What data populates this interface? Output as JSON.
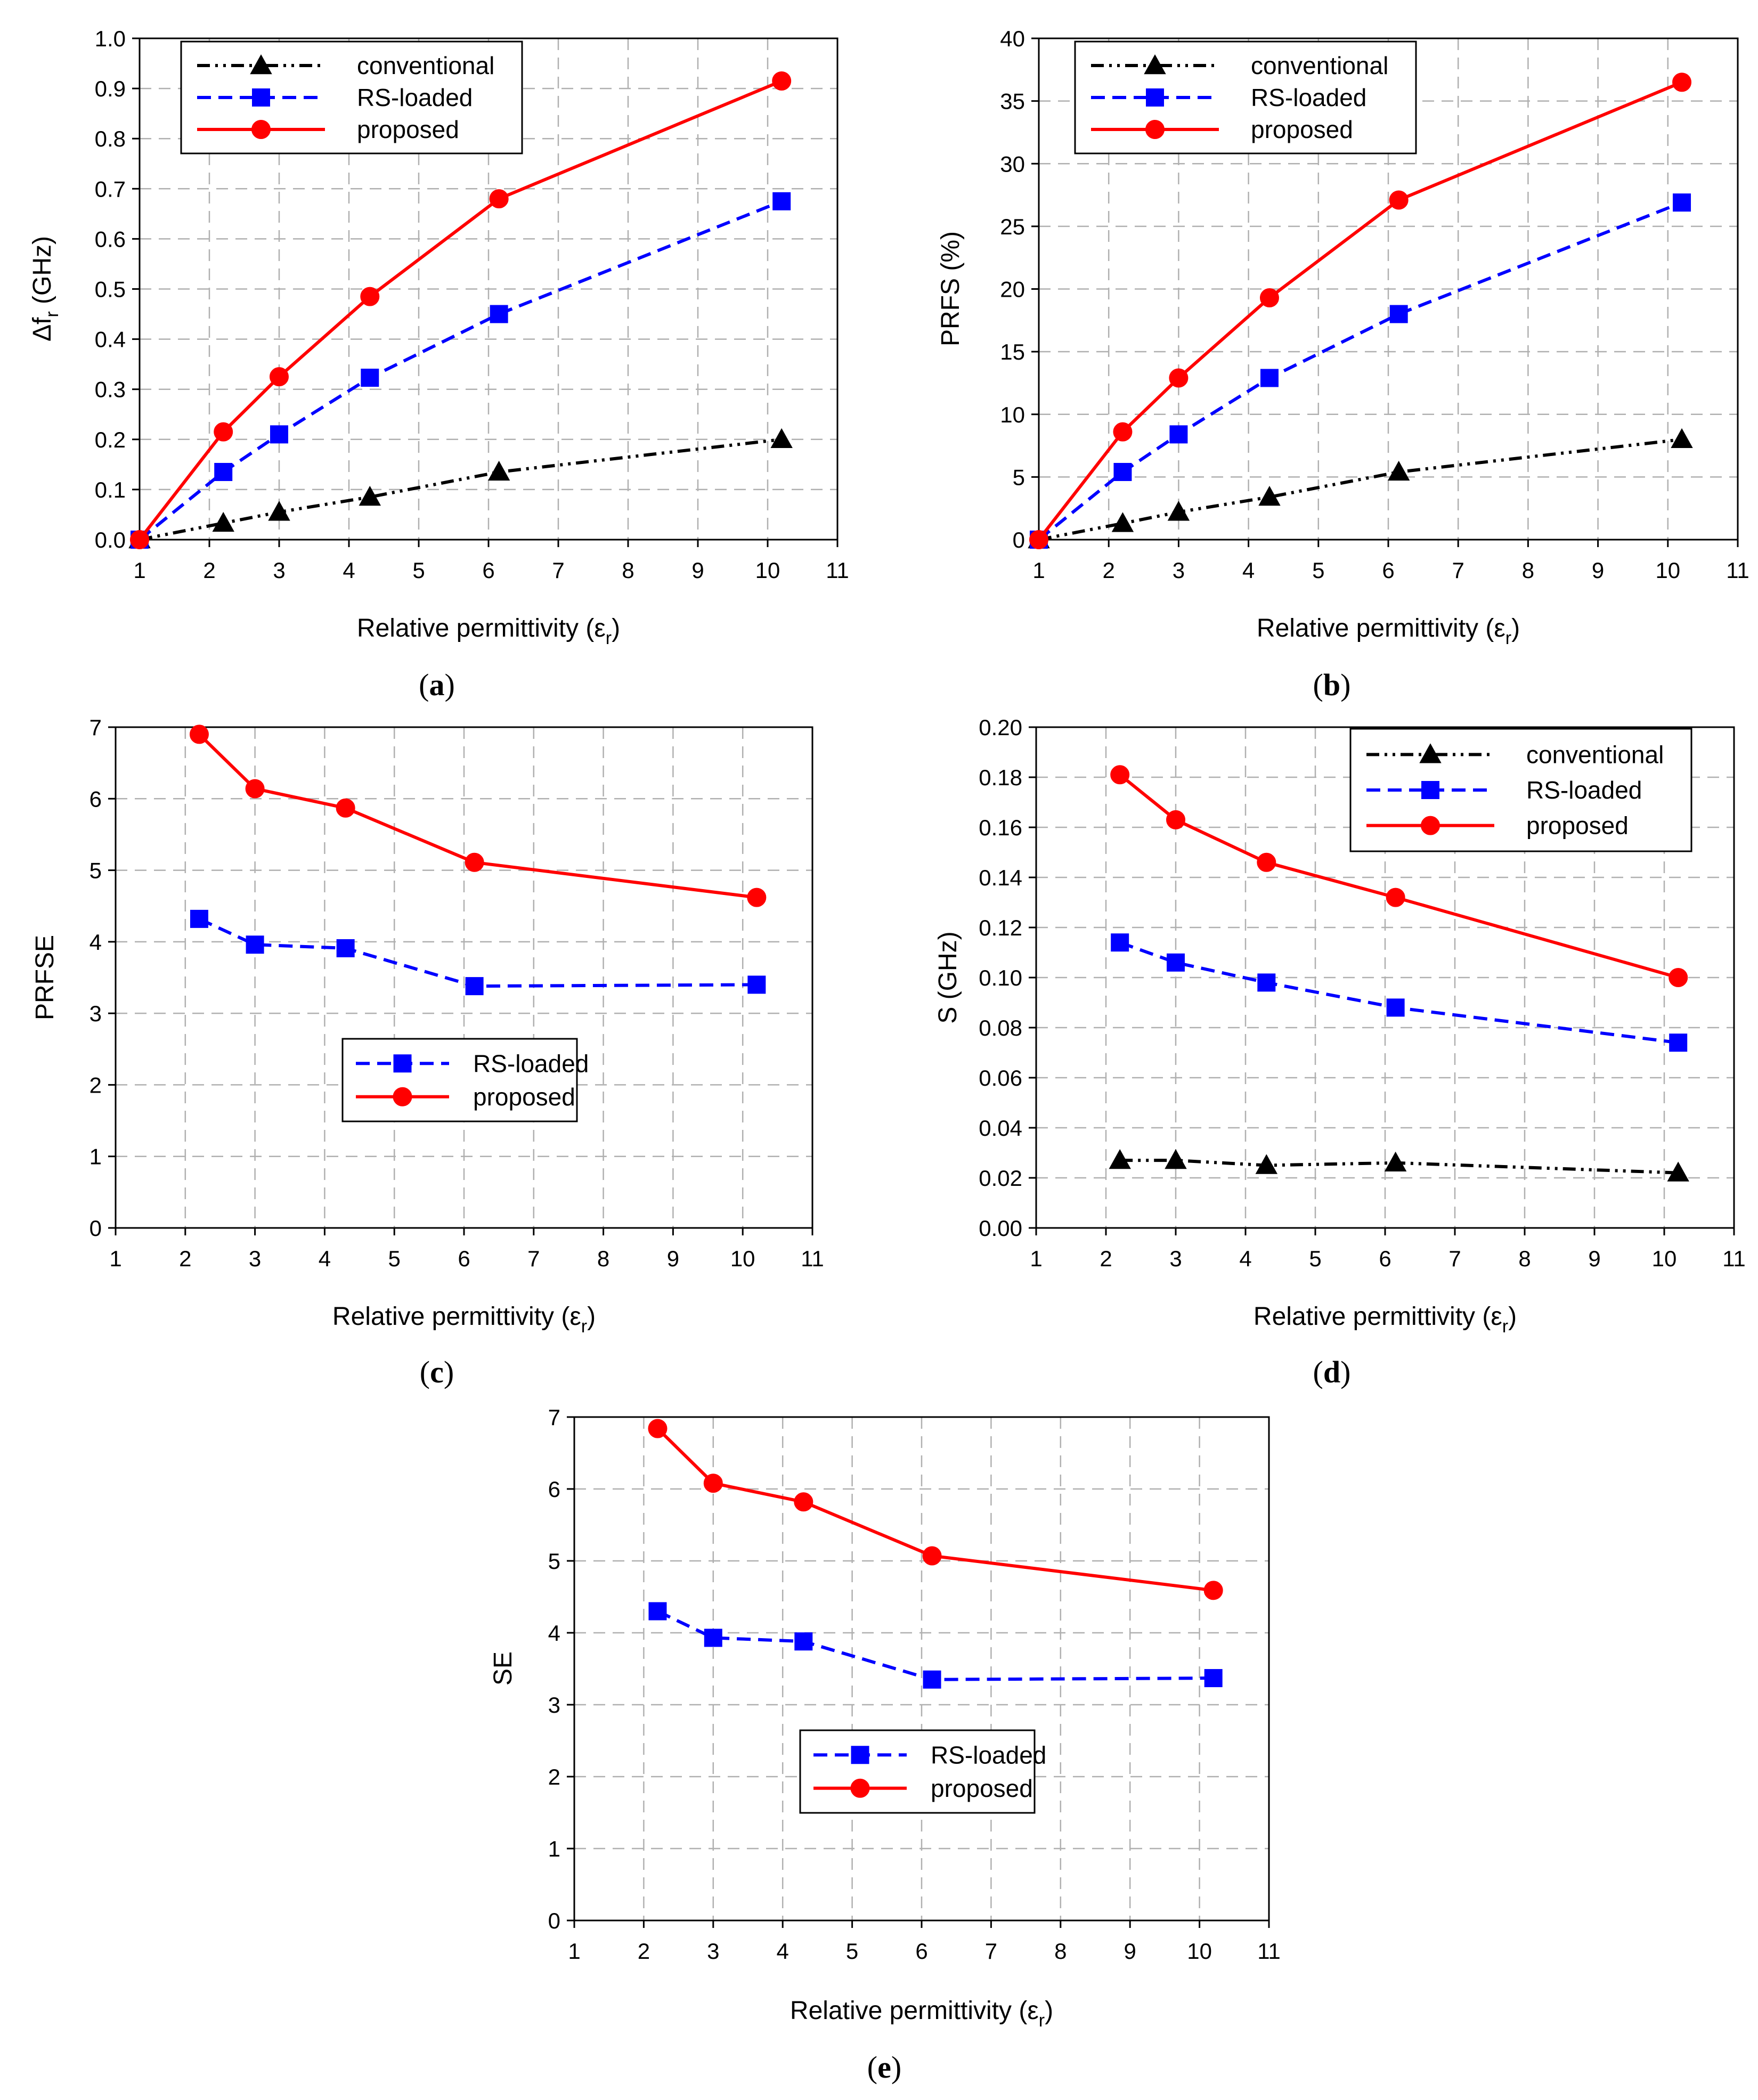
{
  "chart_data": [
    {
      "type": "line",
      "panel": "a",
      "caption": "a",
      "title": "",
      "xlabel": "Relative permittivity",
      "xlabel_symbol": "ε",
      "xlabel_sub": "r",
      "ylabel": "Δf",
      "ylabel_sub": "r",
      "ylabel_unit": "(GHz)",
      "xlim": [
        1,
        11
      ],
      "ylim": [
        0,
        1.0
      ],
      "xticks": [
        "1",
        "2",
        "3",
        "4",
        "5",
        "6",
        "7",
        "8",
        "9",
        "10",
        "11"
      ],
      "yticks": [
        "0.0",
        "0.1",
        "0.2",
        "0.3",
        "0.4",
        "0.5",
        "0.6",
        "0.7",
        "0.8",
        "0.9",
        "1.0"
      ],
      "grid": true,
      "legend_position": "top-left",
      "series": [
        {
          "name": "conventional",
          "color": "#000000",
          "dash": "dashdotdot",
          "marker": "triangle",
          "x": [
            1,
            2.2,
            3,
            4.3,
            6.15,
            10.2
          ],
          "values": [
            0,
            0.033,
            0.055,
            0.085,
            0.135,
            0.2
          ]
        },
        {
          "name": "RS-loaded",
          "color": "#0000ff",
          "dash": "dashed",
          "marker": "square",
          "x": [
            1,
            2.2,
            3,
            4.3,
            6.15,
            10.2
          ],
          "values": [
            0,
            0.135,
            0.21,
            0.323,
            0.45,
            0.675
          ]
        },
        {
          "name": "proposed",
          "color": "#ff0000",
          "dash": "solid",
          "marker": "circle",
          "x": [
            1,
            2.2,
            3,
            4.3,
            6.15,
            10.2
          ],
          "values": [
            0,
            0.215,
            0.325,
            0.485,
            0.68,
            0.915
          ]
        }
      ]
    },
    {
      "type": "line",
      "panel": "b",
      "caption": "b",
      "title": "",
      "xlabel": "Relative permittivity",
      "xlabel_symbol": "ε",
      "xlabel_sub": "r",
      "ylabel": "PRFS (%)",
      "xlim": [
        1,
        11
      ],
      "ylim": [
        0,
        40
      ],
      "xticks": [
        "1",
        "2",
        "3",
        "4",
        "5",
        "6",
        "7",
        "8",
        "9",
        "10",
        "11"
      ],
      "yticks": [
        "0",
        "5",
        "10",
        "15",
        "20",
        "25",
        "30",
        "35",
        "40"
      ],
      "grid": true,
      "legend_position": "top-left",
      "series": [
        {
          "name": "conventional",
          "color": "#000000",
          "dash": "dashdotdot",
          "marker": "triangle",
          "x": [
            1,
            2.2,
            3,
            4.3,
            6.15,
            10.2
          ],
          "values": [
            0,
            1.3,
            2.2,
            3.4,
            5.4,
            8.0
          ]
        },
        {
          "name": "RS-loaded",
          "color": "#0000ff",
          "dash": "dashed",
          "marker": "square",
          "x": [
            1,
            2.2,
            3,
            4.3,
            6.15,
            10.2
          ],
          "values": [
            0,
            5.4,
            8.4,
            12.9,
            18.0,
            26.9
          ]
        },
        {
          "name": "proposed",
          "color": "#ff0000",
          "dash": "solid",
          "marker": "circle",
          "x": [
            1,
            2.2,
            3,
            4.3,
            6.15,
            10.2
          ],
          "values": [
            0,
            8.6,
            12.9,
            19.3,
            27.1,
            36.5
          ]
        }
      ]
    },
    {
      "type": "line",
      "panel": "c",
      "caption": "c",
      "title": "",
      "xlabel": "Relative permittivity",
      "xlabel_symbol": "ε",
      "xlabel_sub": "r",
      "ylabel": "PRFSE",
      "xlim": [
        1,
        11
      ],
      "ylim": [
        0,
        7
      ],
      "xticks": [
        "1",
        "2",
        "3",
        "4",
        "5",
        "6",
        "7",
        "8",
        "9",
        "10",
        "11"
      ],
      "yticks": [
        "0",
        "1",
        "2",
        "3",
        "4",
        "5",
        "6",
        "7"
      ],
      "grid": true,
      "legend_position": "center",
      "series": [
        {
          "name": "RS-loaded",
          "color": "#0000ff",
          "dash": "dashed",
          "marker": "square",
          "x": [
            2.2,
            3,
            4.3,
            6.15,
            10.2
          ],
          "values": [
            4.32,
            3.96,
            3.91,
            3.38,
            3.4
          ]
        },
        {
          "name": "proposed",
          "color": "#ff0000",
          "dash": "solid",
          "marker": "circle",
          "x": [
            2.2,
            3,
            4.3,
            6.15,
            10.2
          ],
          "values": [
            6.9,
            6.14,
            5.87,
            5.11,
            4.62
          ]
        }
      ]
    },
    {
      "type": "line",
      "panel": "d",
      "caption": "d",
      "title": "",
      "xlabel": "Relative permittivity",
      "xlabel_symbol": "ε",
      "xlabel_sub": "r",
      "ylabel": "S (GHz)",
      "xlim": [
        1,
        11
      ],
      "ylim": [
        0,
        0.2
      ],
      "xticks": [
        "1",
        "2",
        "3",
        "4",
        "5",
        "6",
        "7",
        "8",
        "9",
        "10",
        "11"
      ],
      "yticks": [
        "0.00",
        "0.02",
        "0.04",
        "0.06",
        "0.08",
        "0.10",
        "0.12",
        "0.14",
        "0.16",
        "0.18",
        "0.20"
      ],
      "grid": true,
      "legend_position": "top-right",
      "series": [
        {
          "name": "conventional",
          "color": "#000000",
          "dash": "dashdotdot",
          "marker": "triangle",
          "x": [
            2.2,
            3,
            4.3,
            6.15,
            10.2
          ],
          "values": [
            0.027,
            0.027,
            0.025,
            0.026,
            0.022
          ]
        },
        {
          "name": "RS-loaded",
          "color": "#0000ff",
          "dash": "dashed",
          "marker": "square",
          "x": [
            2.2,
            3,
            4.3,
            6.15,
            10.2
          ],
          "values": [
            0.114,
            0.106,
            0.098,
            0.088,
            0.074
          ]
        },
        {
          "name": "proposed",
          "color": "#ff0000",
          "dash": "solid",
          "marker": "circle",
          "x": [
            2.2,
            3,
            4.3,
            6.15,
            10.2
          ],
          "values": [
            0.181,
            0.163,
            0.146,
            0.132,
            0.1
          ]
        }
      ]
    },
    {
      "type": "line",
      "panel": "e",
      "caption": "e",
      "title": "",
      "xlabel": "Relative permittivity",
      "xlabel_symbol": "ε",
      "xlabel_sub": "r",
      "ylabel": "SE",
      "xlim": [
        1,
        11
      ],
      "ylim": [
        0,
        7
      ],
      "xticks": [
        "1",
        "2",
        "3",
        "4",
        "5",
        "6",
        "7",
        "8",
        "9",
        "10",
        "11"
      ],
      "yticks": [
        "0",
        "1",
        "2",
        "3",
        "4",
        "5",
        "6",
        "7"
      ],
      "grid": true,
      "legend_position": "center",
      "series": [
        {
          "name": "RS-loaded",
          "color": "#0000ff",
          "dash": "dashed",
          "marker": "square",
          "x": [
            2.2,
            3,
            4.3,
            6.15,
            10.2
          ],
          "values": [
            4.3,
            3.93,
            3.88,
            3.35,
            3.37
          ]
        },
        {
          "name": "proposed",
          "color": "#ff0000",
          "dash": "solid",
          "marker": "circle",
          "x": [
            2.2,
            3,
            4.3,
            6.15,
            10.2
          ],
          "values": [
            6.84,
            6.08,
            5.82,
            5.07,
            4.59
          ]
        }
      ]
    }
  ]
}
